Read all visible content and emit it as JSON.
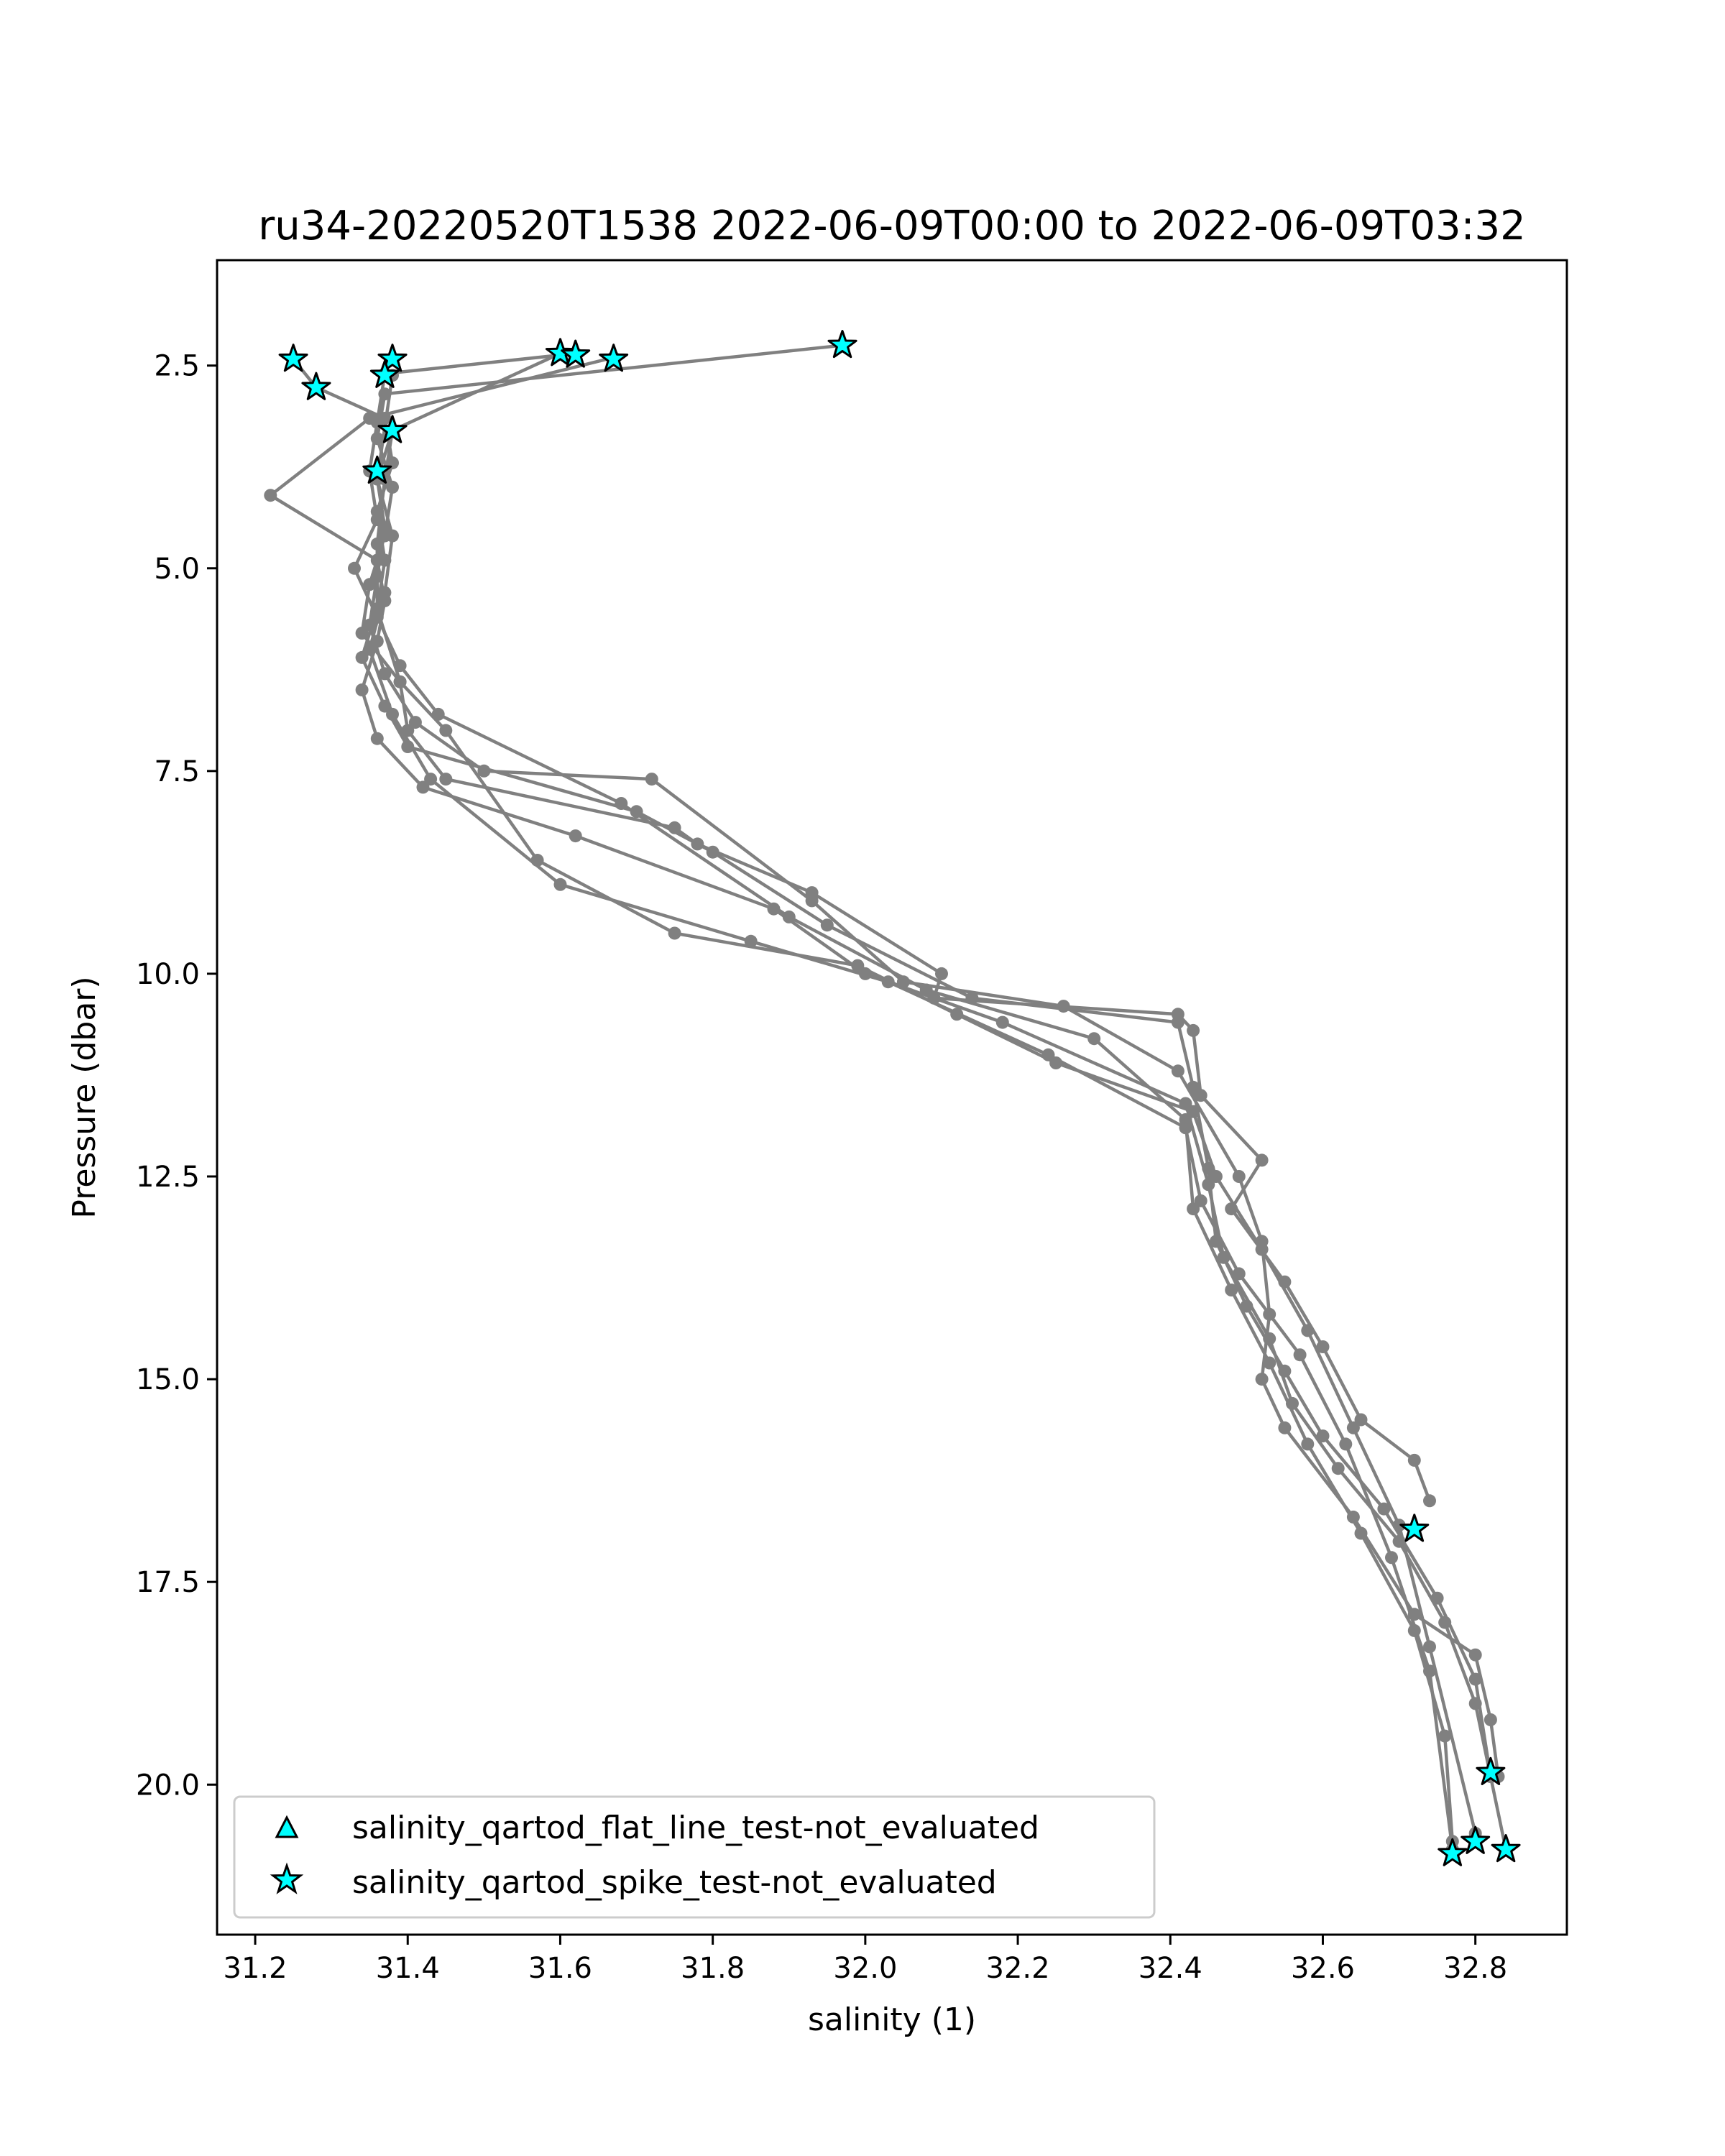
{
  "chart_data": {
    "type": "scatter",
    "title": "ru34-20220520T1538 2022-06-09T00:00 to 2022-06-09T03:32",
    "xlabel": "salinity (1)",
    "ylabel": "Pressure (dbar)",
    "xlim": [
      31.15,
      32.92
    ],
    "ylim": [
      21.85,
      1.2
    ],
    "y_inverted": true,
    "grid": false,
    "legend_position": "lower-left",
    "xticks": [
      31.2,
      31.4,
      31.6,
      31.8,
      32.0,
      32.2,
      32.4,
      32.6,
      32.8
    ],
    "xtick_labels": [
      "31.2",
      "31.4",
      "31.6",
      "31.8",
      "32.0",
      "32.2",
      "32.4",
      "32.6",
      "32.8"
    ],
    "yticks": [
      2.5,
      5.0,
      7.5,
      10.0,
      12.5,
      15.0,
      17.5,
      20.0
    ],
    "ytick_labels": [
      "2.5",
      "5.0",
      "7.5",
      "10.0",
      "12.5",
      "15.0",
      "17.5",
      "20.0"
    ],
    "colors": {
      "profile": "#808080",
      "flag_fill": "#00ffff",
      "flag_edge": "#000000"
    },
    "profiles": [
      {
        "x": [
          31.97,
          31.37,
          31.36,
          31.38,
          31.37,
          31.35,
          31.34,
          31.39,
          31.4,
          31.45,
          31.75,
          31.78,
          31.93,
          32.1,
          32.09,
          32.41,
          32.43,
          32.44,
          32.52,
          32.48,
          32.55,
          32.6,
          32.65,
          32.72,
          32.74
        ],
        "y": [
          2.25,
          2.85,
          3.4,
          4.0,
          4.6,
          5.2,
          5.8,
          6.4,
          7.0,
          7.6,
          8.2,
          8.4,
          9.0,
          10.0,
          10.3,
          10.5,
          10.7,
          11.5,
          12.3,
          12.9,
          13.8,
          14.6,
          15.5,
          16.0,
          16.5
        ]
      },
      {
        "x": [
          31.6,
          31.38,
          31.36,
          31.37,
          31.36,
          31.35,
          31.37,
          31.41,
          31.5,
          31.72,
          31.93,
          32.05,
          32.26,
          32.41,
          32.49,
          32.52,
          32.53,
          32.52,
          32.55,
          32.64,
          32.72,
          32.8,
          32.82,
          32.83
        ],
        "y": [
          2.35,
          3.3,
          3.9,
          4.5,
          5.1,
          5.7,
          6.3,
          6.9,
          7.5,
          7.6,
          9.1,
          10.1,
          10.4,
          11.2,
          12.5,
          13.3,
          14.2,
          15.0,
          15.6,
          16.7,
          17.9,
          18.4,
          19.2,
          19.9
        ]
      },
      {
        "x": [
          31.25,
          31.28,
          31.37,
          31.38,
          31.36,
          31.37,
          31.36,
          31.34,
          31.37,
          31.4,
          31.7,
          31.8,
          31.95,
          32.14,
          32.41,
          32.43,
          32.45,
          32.46,
          32.5,
          32.55,
          32.6,
          32.68,
          32.75,
          32.8,
          32.82
        ],
        "y": [
          2.42,
          2.77,
          3.15,
          3.7,
          4.3,
          4.9,
          5.5,
          6.1,
          6.7,
          7.2,
          8.0,
          8.5,
          9.4,
          10.3,
          10.6,
          11.4,
          12.4,
          13.3,
          14.1,
          14.9,
          15.7,
          16.6,
          17.7,
          18.7,
          19.9
        ]
      },
      {
        "x": [
          31.67,
          31.35,
          31.22,
          31.36,
          31.37,
          31.36,
          31.34,
          31.36,
          31.42,
          31.62,
          31.88,
          32.0,
          32.18,
          32.42,
          32.45,
          32.47,
          32.53,
          32.56,
          32.62,
          32.7,
          32.76,
          32.8,
          32.82,
          32.84
        ],
        "y": [
          2.4,
          3.15,
          4.1,
          4.9,
          5.4,
          5.9,
          6.5,
          7.1,
          7.7,
          8.3,
          9.2,
          10.0,
          10.6,
          11.6,
          12.6,
          13.5,
          14.5,
          15.3,
          16.1,
          17.0,
          18.0,
          19.0,
          19.9,
          20.8
        ]
      },
      {
        "x": [
          31.62,
          31.37,
          31.36,
          31.35,
          31.36,
          31.33,
          31.36,
          31.39,
          31.44,
          31.68,
          31.9,
          32.08,
          32.3,
          32.42,
          32.43,
          32.48,
          32.53,
          32.58,
          32.65,
          32.72,
          32.76,
          32.77
        ],
        "y": [
          2.35,
          2.6,
          3.2,
          3.8,
          4.4,
          5.0,
          5.6,
          6.2,
          6.8,
          7.9,
          9.3,
          10.2,
          10.8,
          11.8,
          12.9,
          13.9,
          14.8,
          15.8,
          16.9,
          18.1,
          19.4,
          20.7
        ]
      },
      {
        "x": [
          31.38,
          31.36,
          31.38,
          31.37,
          31.35,
          31.38,
          31.43,
          31.6,
          31.85,
          32.03,
          32.24,
          32.42,
          32.44,
          32.49,
          32.57,
          32.63,
          32.69,
          32.74,
          32.77
        ],
        "y": [
          2.62,
          3.9,
          4.6,
          5.3,
          6.0,
          6.8,
          7.6,
          8.9,
          9.6,
          10.1,
          11.0,
          11.9,
          12.8,
          13.7,
          14.7,
          15.8,
          17.2,
          18.6,
          20.8
        ]
      },
      {
        "x": [
          31.38,
          31.37,
          31.36,
          31.36,
          31.39,
          31.45,
          31.57,
          31.75,
          31.99,
          32.12,
          32.25,
          32.43,
          32.46,
          32.52,
          32.58,
          32.64,
          32.7,
          32.74,
          32.8
        ],
        "y": [
          3.3,
          3.9,
          4.7,
          5.5,
          6.4,
          7.0,
          8.6,
          9.5,
          9.9,
          10.5,
          11.1,
          11.7,
          12.5,
          13.4,
          14.4,
          15.6,
          16.8,
          18.3,
          20.6
        ]
      }
    ],
    "flagged_series": [
      {
        "name": "salinity_qartod_flat_line_test-not_evaluated",
        "marker": "triangle",
        "x": [],
        "y": []
      },
      {
        "name": "salinity_qartod_spike_test-not_evaluated",
        "marker": "star",
        "x": [
          31.97,
          31.6,
          31.62,
          31.67,
          31.25,
          31.38,
          31.37,
          31.28,
          31.38,
          31.36,
          32.72,
          32.82,
          32.8,
          32.84,
          32.77
        ],
        "y": [
          2.25,
          2.35,
          2.37,
          2.42,
          2.42,
          2.42,
          2.62,
          2.77,
          3.3,
          3.8,
          16.85,
          19.85,
          20.7,
          20.8,
          20.85
        ]
      }
    ]
  }
}
